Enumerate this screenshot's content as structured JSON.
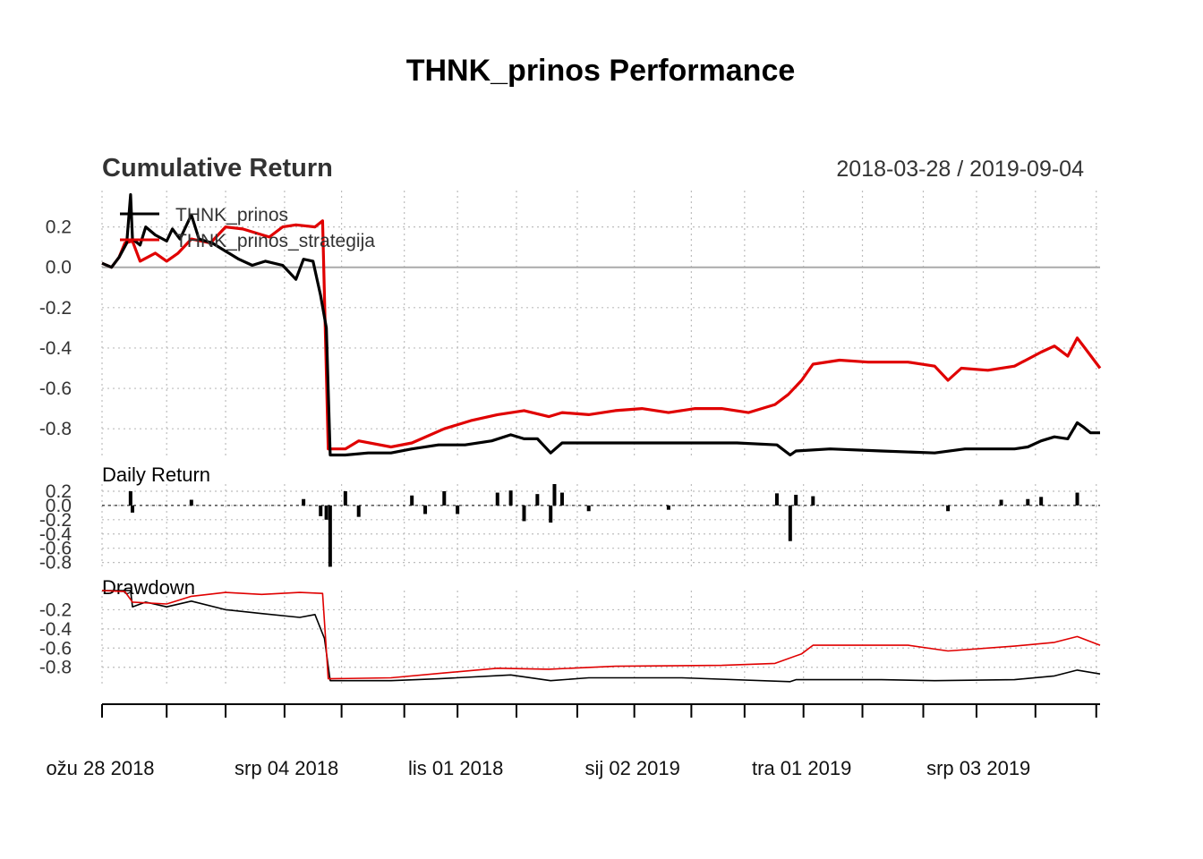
{
  "title": "THNK_prinos Performance",
  "panels": {
    "cumulative": {
      "title": "Cumulative Return",
      "date_range": "2018-03-28 / 2019-09-04"
    },
    "daily": {
      "title": "Daily Return"
    },
    "drawdown": {
      "title": "Drawdown"
    }
  },
  "legend": [
    "THNK_prinos",
    "THNK_prinos_strategija"
  ],
  "x_axis_labels": [
    "ožu 28 2018",
    "srp 04 2018",
    "lis 01 2018",
    "sij 02 2019",
    "tra 01 2019",
    "srp 03 2019"
  ],
  "colors": {
    "THNK_prinos": "#000000",
    "THNK_prinos_strategija": "#e00000",
    "zero_line": "#aaaaaa",
    "grid": "#bdbdbd"
  },
  "chart_data": [
    {
      "type": "line",
      "title": "Cumulative Return",
      "ylim": [
        -0.95,
        0.38
      ],
      "yticks": [
        0.2,
        0.0,
        -0.2,
        -0.4,
        -0.6,
        -0.8
      ],
      "x_start": "2018-03-28",
      "x_end": "2019-09-04",
      "grid": true,
      "legend_position": "top-left",
      "series": [
        {
          "name": "THNK_prinos",
          "points": [
            [
              "2018-03-28",
              0.02
            ],
            [
              "2018-04-02",
              0.0
            ],
            [
              "2018-04-06",
              0.05
            ],
            [
              "2018-04-10",
              0.12
            ],
            [
              "2018-04-12",
              0.36
            ],
            [
              "2018-04-13",
              0.14
            ],
            [
              "2018-04-17",
              0.11
            ],
            [
              "2018-04-20",
              0.2
            ],
            [
              "2018-04-25",
              0.16
            ],
            [
              "2018-05-01",
              0.13
            ],
            [
              "2018-05-04",
              0.19
            ],
            [
              "2018-05-08",
              0.14
            ],
            [
              "2018-05-14",
              0.26
            ],
            [
              "2018-05-18",
              0.14
            ],
            [
              "2018-05-25",
              0.12
            ],
            [
              "2018-06-01",
              0.08
            ],
            [
              "2018-06-08",
              0.04
            ],
            [
              "2018-06-15",
              0.01
            ],
            [
              "2018-06-22",
              0.03
            ],
            [
              "2018-07-01",
              0.01
            ],
            [
              "2018-07-08",
              -0.06
            ],
            [
              "2018-07-12",
              0.04
            ],
            [
              "2018-07-17",
              0.03
            ],
            [
              "2018-07-21",
              -0.14
            ],
            [
              "2018-07-24",
              -0.3
            ],
            [
              "2018-07-26",
              -0.93
            ],
            [
              "2018-08-03",
              -0.93
            ],
            [
              "2018-08-15",
              -0.92
            ],
            [
              "2018-08-27",
              -0.92
            ],
            [
              "2018-09-07",
              -0.9
            ],
            [
              "2018-09-21",
              -0.88
            ],
            [
              "2018-10-05",
              -0.88
            ],
            [
              "2018-10-19",
              -0.86
            ],
            [
              "2018-10-29",
              -0.83
            ],
            [
              "2018-11-05",
              -0.85
            ],
            [
              "2018-11-12",
              -0.85
            ],
            [
              "2018-11-19",
              -0.92
            ],
            [
              "2018-11-25",
              -0.87
            ],
            [
              "2018-12-09",
              -0.87
            ],
            [
              "2018-12-30",
              -0.87
            ],
            [
              "2019-01-27",
              -0.87
            ],
            [
              "2019-02-25",
              -0.87
            ],
            [
              "2019-03-18",
              -0.88
            ],
            [
              "2019-03-25",
              -0.93
            ],
            [
              "2019-03-28",
              -0.91
            ],
            [
              "2019-04-15",
              -0.9
            ],
            [
              "2019-05-12",
              -0.91
            ],
            [
              "2019-06-09",
              -0.92
            ],
            [
              "2019-06-25",
              -0.9
            ],
            [
              "2019-07-21",
              -0.9
            ],
            [
              "2019-07-28",
              -0.89
            ],
            [
              "2019-08-04",
              -0.86
            ],
            [
              "2019-08-11",
              -0.84
            ],
            [
              "2019-08-18",
              -0.85
            ],
            [
              "2019-08-23",
              -0.77
            ],
            [
              "2019-08-26",
              -0.79
            ],
            [
              "2019-08-30",
              -0.82
            ],
            [
              "2019-09-04",
              -0.82
            ]
          ]
        },
        {
          "name": "THNK_prinos_strategija",
          "points": [
            [
              "2018-03-28",
              0.02
            ],
            [
              "2018-04-02",
              0.0
            ],
            [
              "2018-04-06",
              0.05
            ],
            [
              "2018-04-09",
              0.12
            ],
            [
              "2018-04-13",
              0.13
            ],
            [
              "2018-04-17",
              0.03
            ],
            [
              "2018-04-21",
              0.05
            ],
            [
              "2018-04-25",
              0.07
            ],
            [
              "2018-05-01",
              0.03
            ],
            [
              "2018-05-07",
              0.07
            ],
            [
              "2018-05-14",
              0.14
            ],
            [
              "2018-05-24",
              0.12
            ],
            [
              "2018-06-01",
              0.2
            ],
            [
              "2018-06-10",
              0.19
            ],
            [
              "2018-06-17",
              0.17
            ],
            [
              "2018-06-24",
              0.15
            ],
            [
              "2018-07-01",
              0.2
            ],
            [
              "2018-07-08",
              0.21
            ],
            [
              "2018-07-18",
              0.2
            ],
            [
              "2018-07-22",
              0.23
            ],
            [
              "2018-07-25",
              -0.9
            ],
            [
              "2018-08-03",
              -0.9
            ],
            [
              "2018-08-10",
              -0.86
            ],
            [
              "2018-08-27",
              -0.89
            ],
            [
              "2018-09-07",
              -0.87
            ],
            [
              "2018-09-24",
              -0.8
            ],
            [
              "2018-10-08",
              -0.76
            ],
            [
              "2018-10-22",
              -0.73
            ],
            [
              "2018-11-05",
              -0.71
            ],
            [
              "2018-11-18",
              -0.74
            ],
            [
              "2018-11-25",
              -0.72
            ],
            [
              "2018-12-09",
              -0.73
            ],
            [
              "2018-12-23",
              -0.71
            ],
            [
              "2019-01-06",
              -0.7
            ],
            [
              "2019-01-20",
              -0.72
            ],
            [
              "2019-02-03",
              -0.7
            ],
            [
              "2019-02-17",
              -0.7
            ],
            [
              "2019-03-03",
              -0.72
            ],
            [
              "2019-03-17",
              -0.68
            ],
            [
              "2019-03-24",
              -0.63
            ],
            [
              "2019-03-31",
              -0.56
            ],
            [
              "2019-04-06",
              -0.48
            ],
            [
              "2019-04-20",
              -0.46
            ],
            [
              "2019-05-05",
              -0.47
            ],
            [
              "2019-05-26",
              -0.47
            ],
            [
              "2019-06-09",
              -0.49
            ],
            [
              "2019-06-16",
              -0.56
            ],
            [
              "2019-06-23",
              -0.5
            ],
            [
              "2019-07-07",
              -0.51
            ],
            [
              "2019-07-21",
              -0.49
            ],
            [
              "2019-08-04",
              -0.42
            ],
            [
              "2019-08-11",
              -0.39
            ],
            [
              "2019-08-18",
              -0.44
            ],
            [
              "2019-08-23",
              -0.35
            ],
            [
              "2019-08-27",
              -0.4
            ],
            [
              "2019-09-04",
              -0.5
            ]
          ]
        }
      ]
    },
    {
      "type": "bar",
      "title": "Daily Return",
      "ylim": [
        -0.88,
        0.3
      ],
      "yticks": [
        0.2,
        0.0,
        -0.2,
        -0.4,
        -0.6,
        -0.8
      ],
      "series": [
        {
          "name": "THNK_prinos",
          "points": [
            [
              "2018-04-12",
              0.2
            ],
            [
              "2018-04-13",
              -0.1
            ],
            [
              "2018-05-14",
              0.08
            ],
            [
              "2018-07-12",
              0.09
            ],
            [
              "2018-07-21",
              -0.15
            ],
            [
              "2018-07-24",
              -0.2
            ],
            [
              "2018-07-26",
              -0.86
            ],
            [
              "2018-08-03",
              0.2
            ],
            [
              "2018-08-10",
              -0.16
            ],
            [
              "2018-09-07",
              0.14
            ],
            [
              "2018-09-14",
              -0.12
            ],
            [
              "2018-09-24",
              0.2
            ],
            [
              "2018-10-01",
              -0.12
            ],
            [
              "2018-10-22",
              0.18
            ],
            [
              "2018-10-29",
              0.21
            ],
            [
              "2018-11-05",
              -0.22
            ],
            [
              "2018-11-12",
              0.16
            ],
            [
              "2018-11-19",
              -0.24
            ],
            [
              "2018-11-21",
              0.3
            ],
            [
              "2018-11-25",
              0.18
            ],
            [
              "2018-12-09",
              -0.08
            ],
            [
              "2019-01-20",
              -0.06
            ],
            [
              "2019-03-18",
              0.17
            ],
            [
              "2019-03-25",
              -0.5
            ],
            [
              "2019-03-28",
              0.15
            ],
            [
              "2019-04-06",
              0.13
            ],
            [
              "2019-06-16",
              -0.08
            ],
            [
              "2019-07-14",
              0.08
            ],
            [
              "2019-07-28",
              0.09
            ],
            [
              "2019-08-04",
              0.12
            ],
            [
              "2019-08-23",
              0.18
            ]
          ]
        }
      ]
    },
    {
      "type": "line",
      "title": "Drawdown",
      "ylim": [
        -0.98,
        0.0
      ],
      "yticks": [
        -0.2,
        -0.4,
        -0.6,
        -0.8
      ],
      "series": [
        {
          "name": "THNK_prinos",
          "points": [
            [
              "2018-03-28",
              0.0
            ],
            [
              "2018-04-12",
              0.0
            ],
            [
              "2018-04-13",
              -0.17
            ],
            [
              "2018-04-20",
              -0.12
            ],
            [
              "2018-05-01",
              -0.17
            ],
            [
              "2018-05-14",
              -0.11
            ],
            [
              "2018-06-01",
              -0.2
            ],
            [
              "2018-06-20",
              -0.24
            ],
            [
              "2018-07-10",
              -0.28
            ],
            [
              "2018-07-18",
              -0.25
            ],
            [
              "2018-07-23",
              -0.5
            ],
            [
              "2018-07-26",
              -0.94
            ],
            [
              "2018-08-27",
              -0.94
            ],
            [
              "2018-09-21",
              -0.92
            ],
            [
              "2018-10-29",
              -0.88
            ],
            [
              "2018-11-19",
              -0.94
            ],
            [
              "2018-12-09",
              -0.91
            ],
            [
              "2019-01-27",
              -0.91
            ],
            [
              "2019-03-25",
              -0.95
            ],
            [
              "2019-03-28",
              -0.93
            ],
            [
              "2019-05-12",
              -0.93
            ],
            [
              "2019-06-09",
              -0.94
            ],
            [
              "2019-07-21",
              -0.93
            ],
            [
              "2019-08-11",
              -0.89
            ],
            [
              "2019-08-23",
              -0.83
            ],
            [
              "2019-09-04",
              -0.87
            ]
          ]
        },
        {
          "name": "THNK_prinos_strategija",
          "points": [
            [
              "2018-03-28",
              0.0
            ],
            [
              "2018-04-09",
              -0.01
            ],
            [
              "2018-04-13",
              -0.12
            ],
            [
              "2018-05-01",
              -0.14
            ],
            [
              "2018-05-14",
              -0.06
            ],
            [
              "2018-06-01",
              -0.02
            ],
            [
              "2018-06-20",
              -0.04
            ],
            [
              "2018-07-10",
              -0.02
            ],
            [
              "2018-07-22",
              -0.03
            ],
            [
              "2018-07-25",
              -0.92
            ],
            [
              "2018-08-27",
              -0.91
            ],
            [
              "2018-09-24",
              -0.86
            ],
            [
              "2018-10-22",
              -0.81
            ],
            [
              "2018-11-18",
              -0.82
            ],
            [
              "2018-12-23",
              -0.79
            ],
            [
              "2019-02-17",
              -0.78
            ],
            [
              "2019-03-17",
              -0.76
            ],
            [
              "2019-03-31",
              -0.66
            ],
            [
              "2019-04-06",
              -0.57
            ],
            [
              "2019-05-26",
              -0.57
            ],
            [
              "2019-06-16",
              -0.63
            ],
            [
              "2019-07-21",
              -0.58
            ],
            [
              "2019-08-11",
              -0.54
            ],
            [
              "2019-08-23",
              -0.48
            ],
            [
              "2019-09-04",
              -0.57
            ]
          ]
        }
      ]
    }
  ]
}
